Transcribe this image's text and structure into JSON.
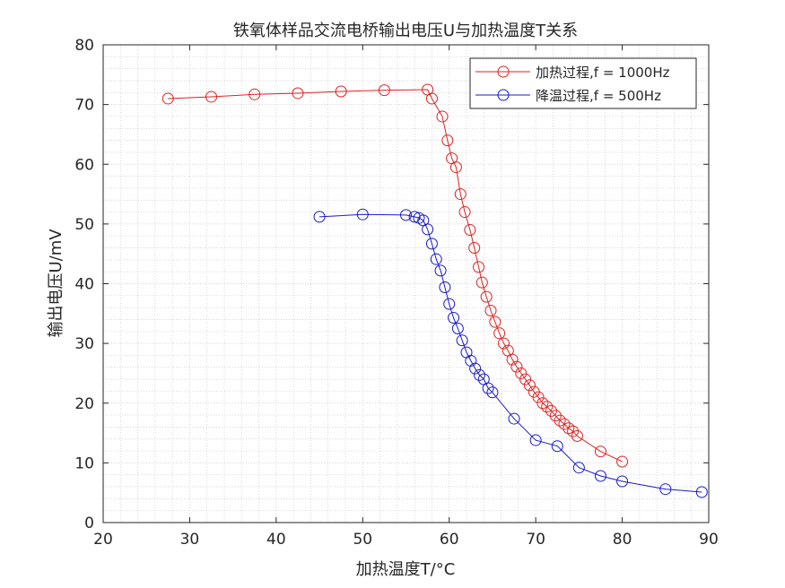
{
  "chart_data": {
    "type": "line",
    "title": "铁氧体样品交流电桥输出电压U与加热温度T关系",
    "xlabel": "加热温度T/°C",
    "ylabel": "输出电压U/mV",
    "xlim": [
      20,
      90
    ],
    "ylim": [
      0,
      80
    ],
    "xticks": [
      20,
      30,
      40,
      50,
      60,
      70,
      80,
      90
    ],
    "yticks": [
      0,
      10,
      20,
      30,
      40,
      50,
      60,
      70,
      80
    ],
    "grid": "minor dotted",
    "legend_position": "top-right",
    "series": [
      {
        "name": "加热过程,f = 1000Hz",
        "color": "#e02020",
        "marker": "circle",
        "x": [
          27.5,
          32.5,
          37.5,
          42.5,
          47.5,
          52.5,
          57.5,
          58,
          59.2,
          59.8,
          60.3,
          60.8,
          61.3,
          61.8,
          62.4,
          62.9,
          63.4,
          63.8,
          64.3,
          64.8,
          65.3,
          65.8,
          66.3,
          66.8,
          67.3,
          67.8,
          68.3,
          68.8,
          69.3,
          69.8,
          70.3,
          70.8,
          71.3,
          71.8,
          72.3,
          72.8,
          73.3,
          73.8,
          74.3,
          74.8,
          77.5,
          80
        ],
        "y": [
          71,
          71.3,
          71.7,
          71.9,
          72.2,
          72.4,
          72.5,
          71,
          68,
          64,
          61,
          59.5,
          55,
          52,
          49,
          46,
          42.8,
          40.2,
          37.8,
          35.5,
          33.6,
          31.7,
          30,
          28.8,
          27.3,
          26.1,
          25,
          24,
          23,
          21.9,
          21,
          20,
          19.4,
          18.7,
          17.9,
          17.1,
          16.5,
          15.8,
          15.3,
          14.5,
          11.9,
          10.2
        ]
      },
      {
        "name": "降温过程,f = 500Hz",
        "color": "#1a1ac8",
        "marker": "circle",
        "x": [
          45,
          50,
          55,
          56,
          56.5,
          57,
          57.5,
          58,
          58.5,
          59,
          59.5,
          60,
          60.5,
          61,
          61.5,
          62,
          62.5,
          63,
          63.5,
          64,
          64.5,
          65,
          67.5,
          70,
          72.5,
          75,
          77.5,
          80,
          85,
          89.2
        ],
        "y": [
          51.2,
          51.6,
          51.5,
          51.2,
          51,
          50.6,
          49.1,
          46.7,
          44.1,
          42.2,
          39.4,
          36.6,
          34.3,
          32.5,
          30.5,
          28.5,
          27.1,
          25.8,
          24.7,
          24,
          22.5,
          21.8,
          17.4,
          13.8,
          12.8,
          9.2,
          7.8,
          6.9,
          5.6,
          5.1
        ]
      }
    ]
  }
}
